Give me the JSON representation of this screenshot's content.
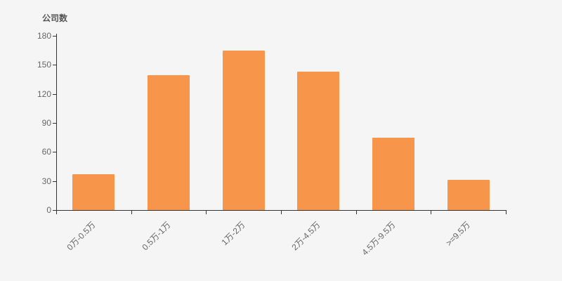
{
  "chart_data": {
    "type": "bar",
    "title": "公司数",
    "ylabel": "公司数",
    "xlabel": "",
    "categories": [
      "0万-0.5万",
      "0.5万-1万",
      "1万-2万",
      "2万-4.5万",
      "4.5万-9.5万",
      ">=9.5万"
    ],
    "values": [
      37,
      139,
      165,
      143,
      75,
      31
    ],
    "ylim": [
      0,
      180
    ],
    "ytick_interval": 30,
    "yticks": [
      0,
      30,
      60,
      90,
      120,
      150,
      180
    ],
    "bar_color": "#f7954b",
    "background_color": "#f5f5f5",
    "axis_color": "#333333",
    "label_color": "#666666",
    "title_color": "#555555",
    "grid": false,
    "legend": null,
    "x_label_rotation_deg": 45
  }
}
